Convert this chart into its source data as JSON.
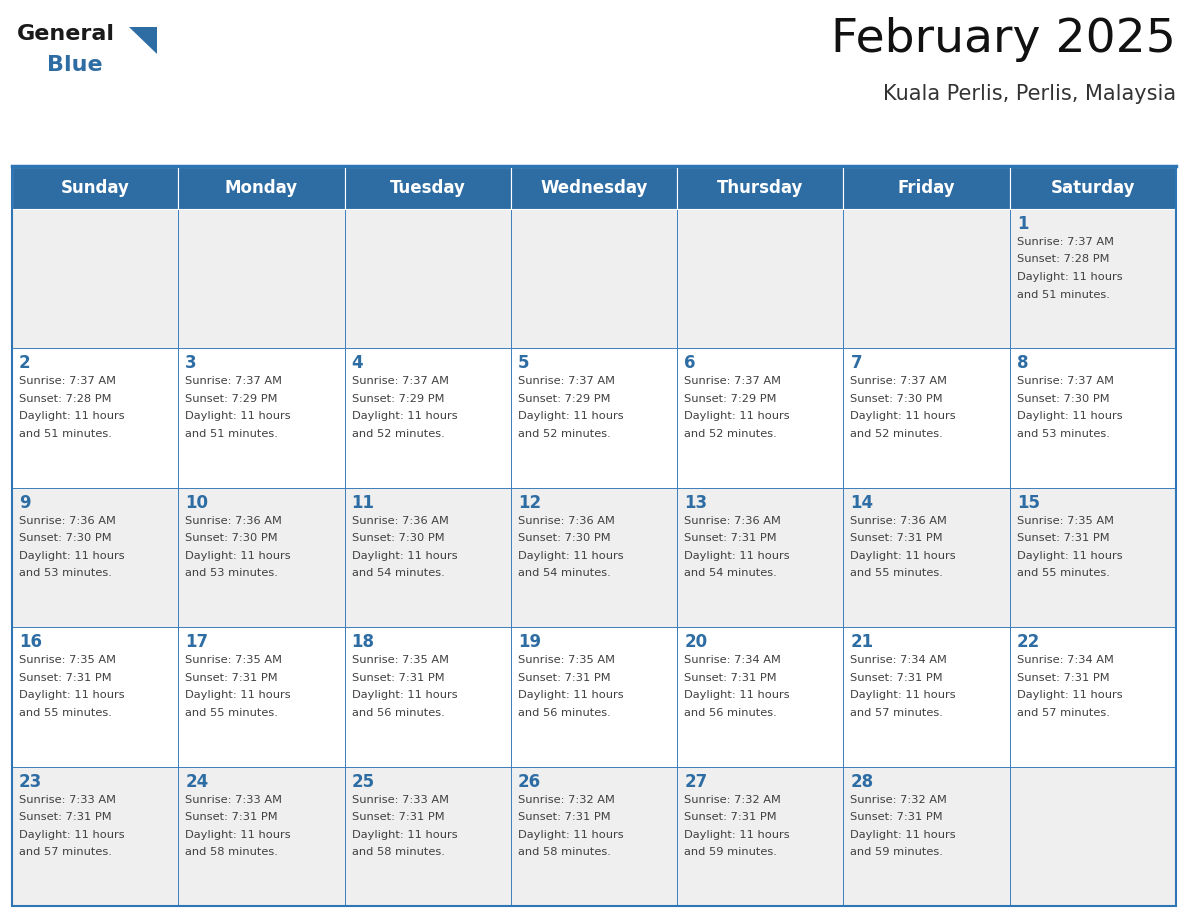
{
  "title": "February 2025",
  "subtitle": "Kuala Perlis, Perlis, Malaysia",
  "days_of_week": [
    "Sunday",
    "Monday",
    "Tuesday",
    "Wednesday",
    "Thursday",
    "Friday",
    "Saturday"
  ],
  "header_bg": "#2E6DA4",
  "header_text": "#FFFFFF",
  "cell_bg_odd": "#EFEFEF",
  "cell_bg_even": "#FFFFFF",
  "border_color": "#2E75B6",
  "text_color": "#404040",
  "day_number_color": "#2E6DA4",
  "calendar": [
    [
      null,
      null,
      null,
      null,
      null,
      null,
      {
        "day": 1,
        "sunrise": "7:37 AM",
        "sunset": "7:28 PM",
        "daylight": "11 hours and 51 minutes."
      }
    ],
    [
      {
        "day": 2,
        "sunrise": "7:37 AM",
        "sunset": "7:28 PM",
        "daylight": "11 hours and 51 minutes."
      },
      {
        "day": 3,
        "sunrise": "7:37 AM",
        "sunset": "7:29 PM",
        "daylight": "11 hours and 51 minutes."
      },
      {
        "day": 4,
        "sunrise": "7:37 AM",
        "sunset": "7:29 PM",
        "daylight": "11 hours and 52 minutes."
      },
      {
        "day": 5,
        "sunrise": "7:37 AM",
        "sunset": "7:29 PM",
        "daylight": "11 hours and 52 minutes."
      },
      {
        "day": 6,
        "sunrise": "7:37 AM",
        "sunset": "7:29 PM",
        "daylight": "11 hours and 52 minutes."
      },
      {
        "day": 7,
        "sunrise": "7:37 AM",
        "sunset": "7:30 PM",
        "daylight": "11 hours and 52 minutes."
      },
      {
        "day": 8,
        "sunrise": "7:37 AM",
        "sunset": "7:30 PM",
        "daylight": "11 hours and 53 minutes."
      }
    ],
    [
      {
        "day": 9,
        "sunrise": "7:36 AM",
        "sunset": "7:30 PM",
        "daylight": "11 hours and 53 minutes."
      },
      {
        "day": 10,
        "sunrise": "7:36 AM",
        "sunset": "7:30 PM",
        "daylight": "11 hours and 53 minutes."
      },
      {
        "day": 11,
        "sunrise": "7:36 AM",
        "sunset": "7:30 PM",
        "daylight": "11 hours and 54 minutes."
      },
      {
        "day": 12,
        "sunrise": "7:36 AM",
        "sunset": "7:30 PM",
        "daylight": "11 hours and 54 minutes."
      },
      {
        "day": 13,
        "sunrise": "7:36 AM",
        "sunset": "7:31 PM",
        "daylight": "11 hours and 54 minutes."
      },
      {
        "day": 14,
        "sunrise": "7:36 AM",
        "sunset": "7:31 PM",
        "daylight": "11 hours and 55 minutes."
      },
      {
        "day": 15,
        "sunrise": "7:35 AM",
        "sunset": "7:31 PM",
        "daylight": "11 hours and 55 minutes."
      }
    ],
    [
      {
        "day": 16,
        "sunrise": "7:35 AM",
        "sunset": "7:31 PM",
        "daylight": "11 hours and 55 minutes."
      },
      {
        "day": 17,
        "sunrise": "7:35 AM",
        "sunset": "7:31 PM",
        "daylight": "11 hours and 55 minutes."
      },
      {
        "day": 18,
        "sunrise": "7:35 AM",
        "sunset": "7:31 PM",
        "daylight": "11 hours and 56 minutes."
      },
      {
        "day": 19,
        "sunrise": "7:35 AM",
        "sunset": "7:31 PM",
        "daylight": "11 hours and 56 minutes."
      },
      {
        "day": 20,
        "sunrise": "7:34 AM",
        "sunset": "7:31 PM",
        "daylight": "11 hours and 56 minutes."
      },
      {
        "day": 21,
        "sunrise": "7:34 AM",
        "sunset": "7:31 PM",
        "daylight": "11 hours and 57 minutes."
      },
      {
        "day": 22,
        "sunrise": "7:34 AM",
        "sunset": "7:31 PM",
        "daylight": "11 hours and 57 minutes."
      }
    ],
    [
      {
        "day": 23,
        "sunrise": "7:33 AM",
        "sunset": "7:31 PM",
        "daylight": "11 hours and 57 minutes."
      },
      {
        "day": 24,
        "sunrise": "7:33 AM",
        "sunset": "7:31 PM",
        "daylight": "11 hours and 58 minutes."
      },
      {
        "day": 25,
        "sunrise": "7:33 AM",
        "sunset": "7:31 PM",
        "daylight": "11 hours and 58 minutes."
      },
      {
        "day": 26,
        "sunrise": "7:32 AM",
        "sunset": "7:31 PM",
        "daylight": "11 hours and 58 minutes."
      },
      {
        "day": 27,
        "sunrise": "7:32 AM",
        "sunset": "7:31 PM",
        "daylight": "11 hours and 59 minutes."
      },
      {
        "day": 28,
        "sunrise": "7:32 AM",
        "sunset": "7:31 PM",
        "daylight": "11 hours and 59 minutes."
      },
      null
    ]
  ]
}
